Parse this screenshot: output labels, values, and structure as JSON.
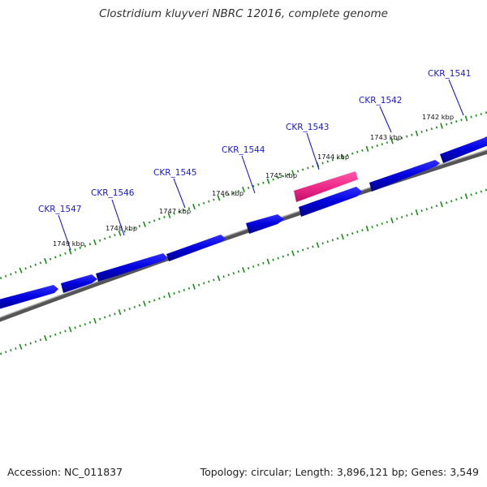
{
  "title": "Clostridium kluyveri NBRC 12016, complete genome",
  "footer": {
    "accession": "Accession: NC_011837",
    "summary": "Topology: circular; Length: 3,896,121 bp; Genes: 3,549"
  },
  "colors": {
    "gene": "#0000dd",
    "selected_gene": "#ee2a8a",
    "backbone": "#777777",
    "tick": "#1a8a1a",
    "label": "#1a1acc"
  },
  "gene_labels": [
    "CKR_1541",
    "CKR_1542",
    "CKR_1543",
    "CKR_1544",
    "CKR_1545",
    "CKR_1546",
    "CKR_1547"
  ],
  "kbp_labels": [
    "1742 kbp",
    "1743 kbp",
    "1744 kbp",
    "1745 kbp",
    "1746 kbp",
    "1747 kbp",
    "1748 kbp",
    "1749 kbp"
  ],
  "selected_gene": "CKR_1543"
}
